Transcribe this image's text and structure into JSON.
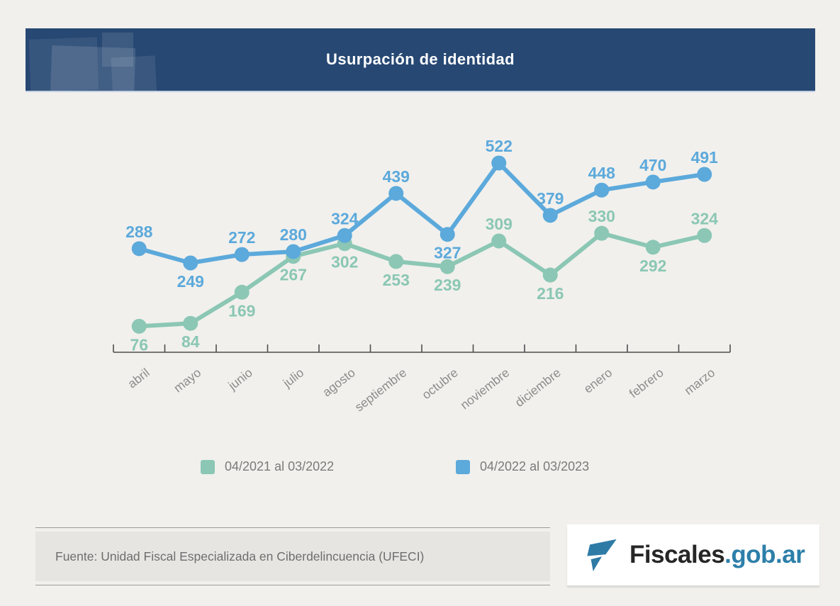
{
  "header": {
    "title": "Usurpación de identidad"
  },
  "chart_data": {
    "type": "line",
    "title": "Usurpación de identidad",
    "categories": [
      "abril",
      "mayo",
      "junio",
      "julio",
      "agosto",
      "septiembre",
      "octubre",
      "noviembre",
      "diciembre",
      "enero",
      "febrero",
      "marzo"
    ],
    "series": [
      {
        "name": "04/2021 al 03/2022",
        "color": "#8BC7B4",
        "values": [
          76,
          84,
          169,
          267,
          302,
          253,
          239,
          309,
          216,
          330,
          292,
          324
        ],
        "label_positions": [
          "below",
          "below",
          "below",
          "below",
          "below",
          "below",
          "below",
          "above",
          "below",
          "above",
          "below",
          "above"
        ]
      },
      {
        "name": "04/2022 al 03/2023",
        "color": "#5CA9DB",
        "values": [
          288,
          249,
          272,
          280,
          324,
          439,
          327,
          522,
          379,
          448,
          470,
          491
        ],
        "label_positions": [
          "above",
          "below",
          "above",
          "above",
          "above",
          "above",
          "below",
          "above",
          "above",
          "above",
          "above",
          "above"
        ]
      }
    ],
    "xlabel": "",
    "ylabel": "",
    "ylim": [
      0,
      560
    ],
    "grid": false,
    "data_labels": true,
    "legend_position": "bottom",
    "axis_color": "#4d4d4d",
    "tick_label_color": "#8c8c8c"
  },
  "footer": {
    "source": "Fuente: Unidad Fiscal Especializada en Ciberdelincuencia (UFECI)"
  },
  "logo": {
    "name_dark": "Fiscales",
    "name_accent": ".gob.ar"
  }
}
